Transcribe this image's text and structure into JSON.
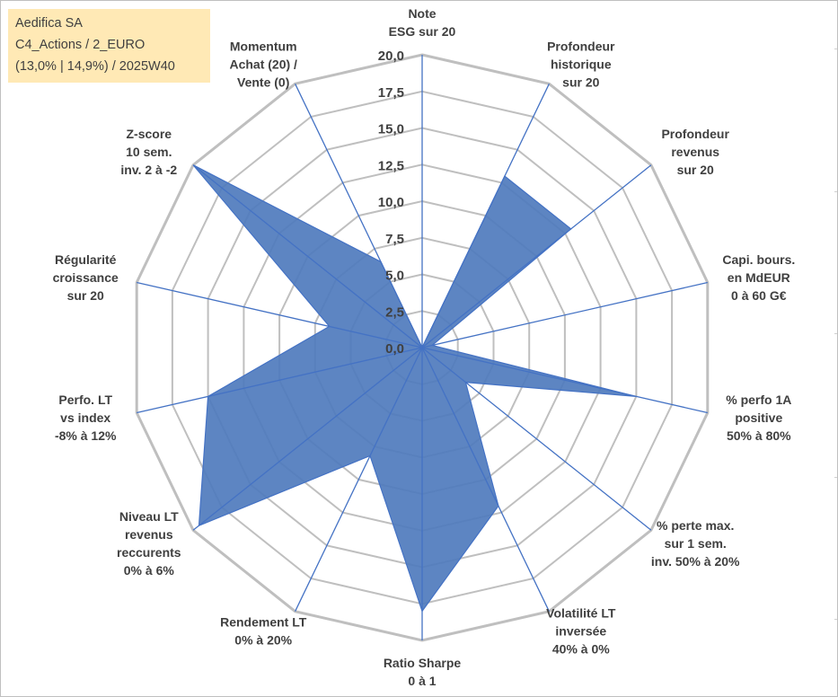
{
  "info_box": {
    "line1": "Aedifica SA",
    "line2": "C4_Actions / 2_EURO",
    "line3": "(13,0% | 14,9%) / 2025W40"
  },
  "colors": {
    "grid": "#bfbfbf",
    "spoke": "#4472c4",
    "area_fill": "#4f7bbd",
    "area_stroke": "#4472c4",
    "text": "#404040",
    "info_bg": "#ffe9b5"
  },
  "chart_data": {
    "type": "radar",
    "title": "",
    "rmin": 0,
    "rmax": 20,
    "tick_step": 2.5,
    "tick_labels": [
      "0,0",
      "2,5",
      "5,0",
      "7,5",
      "10,0",
      "12,5",
      "15,0",
      "17,5",
      "20,0"
    ],
    "axes": [
      {
        "label": [
          "Note",
          "ESG sur 20"
        ],
        "value": 0.0
      },
      {
        "label": [
          "Profondeur",
          "historique",
          "sur 20"
        ],
        "value": 13.0
      },
      {
        "label": [
          "Profondeur",
          "revenus",
          "sur 20"
        ],
        "value": 13.0
      },
      {
        "label": [
          "Capi. bours.",
          "en MdEUR",
          "0 à 60 G€"
        ],
        "value": 0.7
      },
      {
        "label": [
          "% perfo 1A",
          "positive",
          "50% à 80%"
        ],
        "value": 15.0
      },
      {
        "label": [
          "% perte max.",
          "sur 1 sem.",
          "inv. 50% à 20%"
        ],
        "value": 3.8
      },
      {
        "label": [
          "Volatilité LT",
          "inversée",
          "40% à 0%"
        ],
        "value": 12.0
      },
      {
        "label": [
          "Ratio Sharpe",
          "0 à 1"
        ],
        "value": 18.0
      },
      {
        "label": [
          "Rendement LT",
          "0% à 20%"
        ],
        "value": 8.2
      },
      {
        "label": [
          "Niveau LT",
          "revenus",
          "reccurents",
          "0% à 6%"
        ],
        "value": 19.5
      },
      {
        "label": [
          "Perfo. LT",
          "vs index",
          "-8% à 12%"
        ],
        "value": 15.0
      },
      {
        "label": [
          "Régularité",
          "croissance",
          "sur 20"
        ],
        "value": 6.5
      },
      {
        "label": [
          "Z-score",
          "10 sem.",
          "inv. 2 à -2"
        ],
        "value": 20.0
      },
      {
        "label": [
          "Momentum",
          "Achat (20) /",
          "Vente (0)"
        ],
        "value": 6.5
      }
    ]
  }
}
